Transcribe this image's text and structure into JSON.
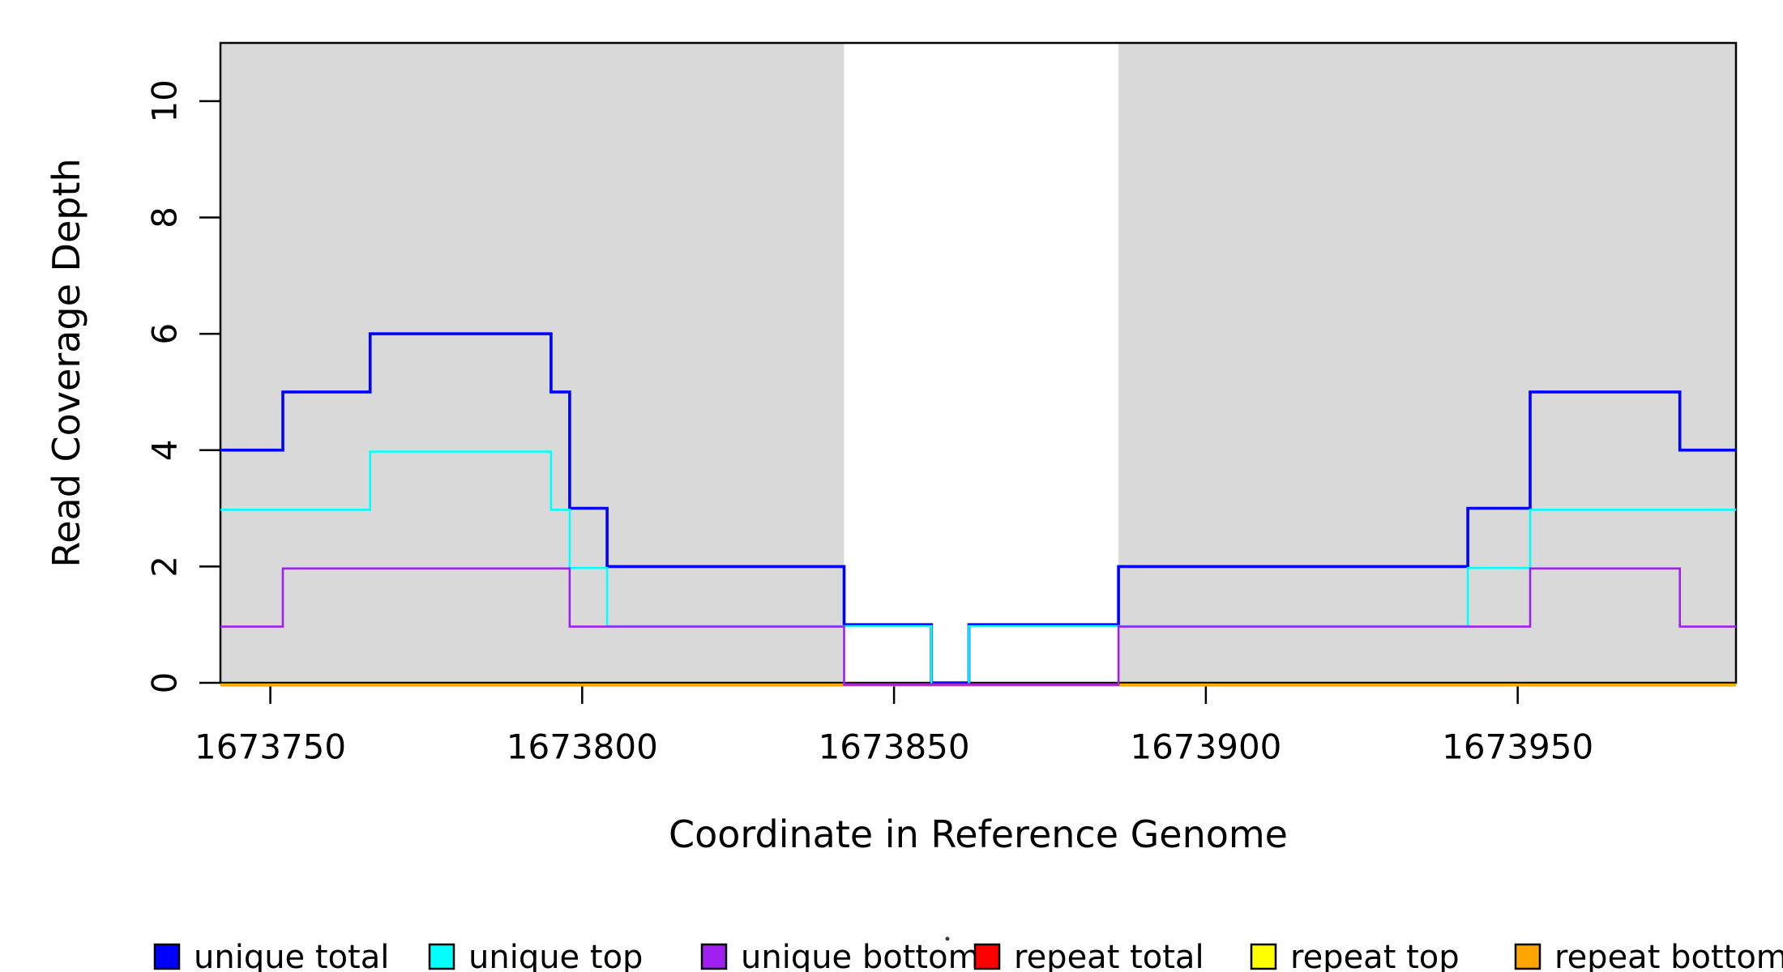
{
  "figure": {
    "background": "#ffffff",
    "shaded_band_color": "#d9d9d9",
    "axis_color": "#000000"
  },
  "chart_data": {
    "type": "line",
    "subtype": "step-coverage-plot",
    "title": "",
    "xlabel": "Coordinate in Reference Genome",
    "ylabel": "Read Coverage Depth",
    "xlim": [
      1673742,
      1673985
    ],
    "ylim": [
      0,
      11
    ],
    "grid": false,
    "x_ticks": [
      1673750,
      1673800,
      1673850,
      1673900,
      1673950
    ],
    "x_tick_labels": [
      "1673750",
      "1673800",
      "1673850",
      "1673900",
      "1673950"
    ],
    "y_ticks": [
      0,
      2,
      4,
      6,
      8,
      10
    ],
    "y_tick_labels": [
      "0",
      "2",
      "4",
      "6",
      "8",
      "10"
    ],
    "shaded_regions": [
      {
        "x_start": 1673742,
        "x_end": 1673842
      },
      {
        "x_start": 1673886,
        "x_end": 1673985
      }
    ],
    "series": [
      {
        "name": "unique total",
        "color": "#0000ff",
        "steps": [
          [
            1673742,
            4
          ],
          [
            1673752,
            5
          ],
          [
            1673766,
            6
          ],
          [
            1673795,
            5
          ],
          [
            1673798,
            3
          ],
          [
            1673804,
            2
          ],
          [
            1673842,
            1
          ],
          [
            1673856,
            0
          ],
          [
            1673862,
            1
          ],
          [
            1673886,
            2
          ],
          [
            1673942,
            3
          ],
          [
            1673952,
            5
          ],
          [
            1673976,
            4
          ],
          [
            1673985,
            4
          ]
        ]
      },
      {
        "name": "unique top",
        "color": "#00ffff",
        "steps": [
          [
            1673742,
            3
          ],
          [
            1673766,
            4
          ],
          [
            1673795,
            3
          ],
          [
            1673798,
            2
          ],
          [
            1673804,
            1
          ],
          [
            1673856,
            0
          ],
          [
            1673862,
            1
          ],
          [
            1673942,
            2
          ],
          [
            1673952,
            3
          ],
          [
            1673985,
            3
          ]
        ]
      },
      {
        "name": "unique bottom",
        "color": "#a020f0",
        "steps": [
          [
            1673742,
            1
          ],
          [
            1673752,
            2
          ],
          [
            1673798,
            1
          ],
          [
            1673842,
            0
          ],
          [
            1673886,
            1
          ],
          [
            1673952,
            2
          ],
          [
            1673976,
            1
          ],
          [
            1673985,
            1
          ]
        ]
      },
      {
        "name": "repeat total",
        "color": "#ff0000",
        "steps": [
          [
            1673742,
            0
          ],
          [
            1673985,
            0
          ]
        ]
      },
      {
        "name": "repeat top",
        "color": "#ffff00",
        "steps": [
          [
            1673742,
            0
          ],
          [
            1673985,
            0
          ]
        ]
      },
      {
        "name": "repeat bottom",
        "color": "#ffa500",
        "steps": [
          [
            1673742,
            0
          ],
          [
            1673985,
            0
          ]
        ]
      }
    ],
    "legend": {
      "position": "bottom",
      "items": [
        {
          "label": "unique total",
          "color": "#0000ff"
        },
        {
          "label": "unique top",
          "color": "#00ffff"
        },
        {
          "label": "unique bottom",
          "color": "#a020f0"
        },
        {
          "label": "repeat total",
          "color": "#ff0000"
        },
        {
          "label": "repeat top",
          "color": "#ffff00"
        },
        {
          "label": "repeat bottom",
          "color": "#ffa500"
        }
      ]
    }
  }
}
